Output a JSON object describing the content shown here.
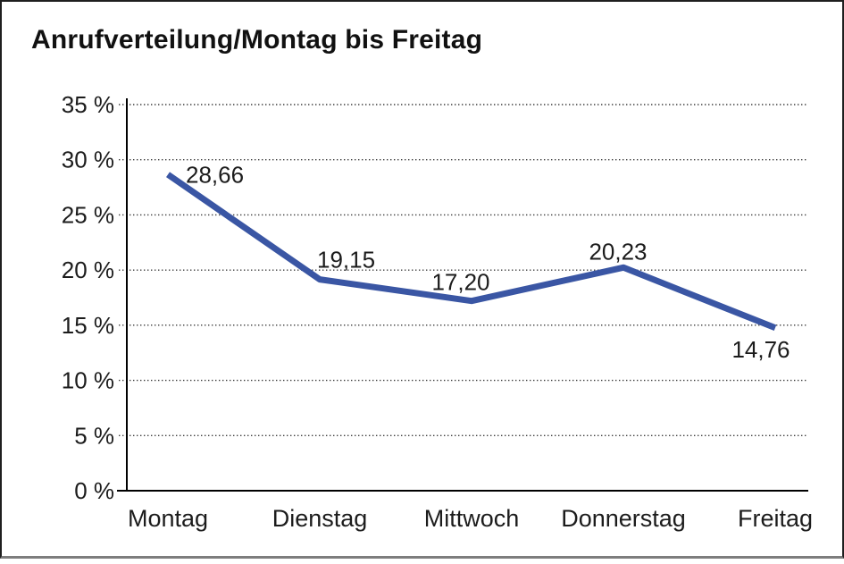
{
  "window": {
    "background": "#ffffff",
    "frame_border_color": "#1f1f1f"
  },
  "chart_data": {
    "type": "line",
    "title": "Anrufverteilung/Montag bis Freitag",
    "categories": [
      "Montag",
      "Dienstag",
      "Mittwoch",
      "Donnerstag",
      "Freitag"
    ],
    "series": [
      {
        "name": "Anrufverteilung",
        "values": [
          28.66,
          19.15,
          17.2,
          20.23,
          14.76
        ]
      }
    ],
    "data_labels": [
      "28,66",
      "19,15",
      "17,20",
      "20,23",
      "14,76"
    ],
    "y_tick_labels": [
      "0 %",
      "5 %",
      "10 %",
      "15 %",
      "20 %",
      "25 %",
      "30 %",
      "35 %"
    ],
    "ylim": [
      0,
      35
    ],
    "y_step": 5,
    "xlabel": "",
    "ylabel": "",
    "legend": "none",
    "grid": "horizontal-dotted",
    "line_color": "#3A56A4",
    "axis_color": "#000000",
    "gridline_color": "#3c3c3c",
    "text_color": "#1c1c1c"
  }
}
